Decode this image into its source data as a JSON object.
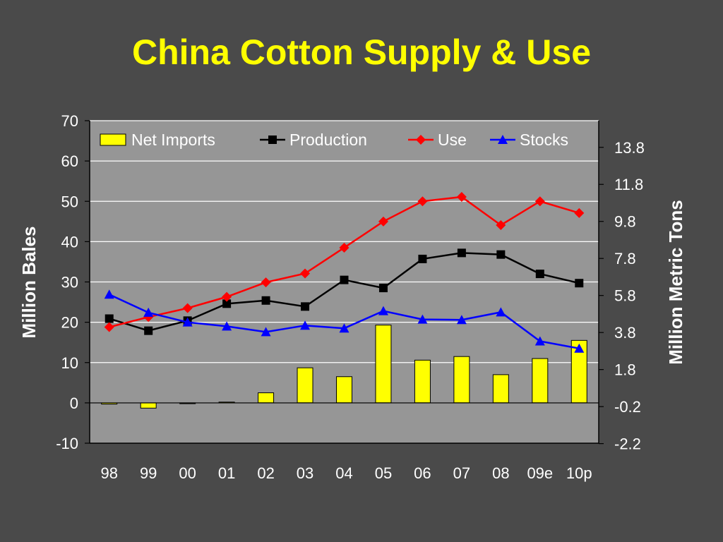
{
  "title": "China Cotton Supply & Use",
  "chart_data": {
    "type": "bar",
    "title": "China Cotton Supply & Use",
    "ylabel": "Million Bales",
    "y2label": "Million Metric Tons",
    "xlabel": "",
    "categories": [
      "98",
      "99",
      "00",
      "01",
      "02",
      "03",
      "04",
      "05",
      "06",
      "07",
      "08",
      "09e",
      "10p"
    ],
    "ylim": [
      -10,
      70
    ],
    "yticks": [
      70,
      60,
      50,
      40,
      30,
      20,
      10,
      0,
      -10
    ],
    "y2ticks": [
      "13.8",
      "11.8",
      "9.8",
      "7.8",
      "5.8",
      "3.8",
      "1.8",
      "-0.2",
      "-2.2"
    ],
    "y2tick_values": [
      13.8,
      11.8,
      9.8,
      7.8,
      5.8,
      3.8,
      1.8,
      -0.2,
      -2.2
    ],
    "y2_factor": 0.2177,
    "grid": true,
    "legend_position": "top",
    "series": [
      {
        "name": "Net Imports",
        "type": "bar",
        "color": "#ffff00",
        "values": [
          -0.3,
          -1.3,
          -0.2,
          0.2,
          2.5,
          8.7,
          6.5,
          19.3,
          10.6,
          11.5,
          7.0,
          11.0,
          15.5
        ]
      },
      {
        "name": "Production",
        "type": "line",
        "color": "#000000",
        "marker": "square",
        "values": [
          20.9,
          17.9,
          20.4,
          24.6,
          25.4,
          23.9,
          30.5,
          28.5,
          35.7,
          37.2,
          36.8,
          32.0,
          29.7
        ]
      },
      {
        "name": "Use",
        "type": "line",
        "color": "#ff0000",
        "marker": "diamond",
        "values": [
          18.8,
          21.3,
          23.5,
          26.3,
          29.9,
          32.1,
          38.5,
          45.0,
          50.0,
          51.1,
          44.1,
          50.0,
          47.1
        ]
      },
      {
        "name": "Stocks",
        "type": "line",
        "color": "#0000ff",
        "marker": "triangle",
        "values": [
          26.9,
          22.4,
          20.0,
          19.0,
          17.6,
          19.2,
          18.5,
          22.8,
          20.7,
          20.6,
          22.5,
          15.3,
          13.5
        ]
      }
    ]
  }
}
